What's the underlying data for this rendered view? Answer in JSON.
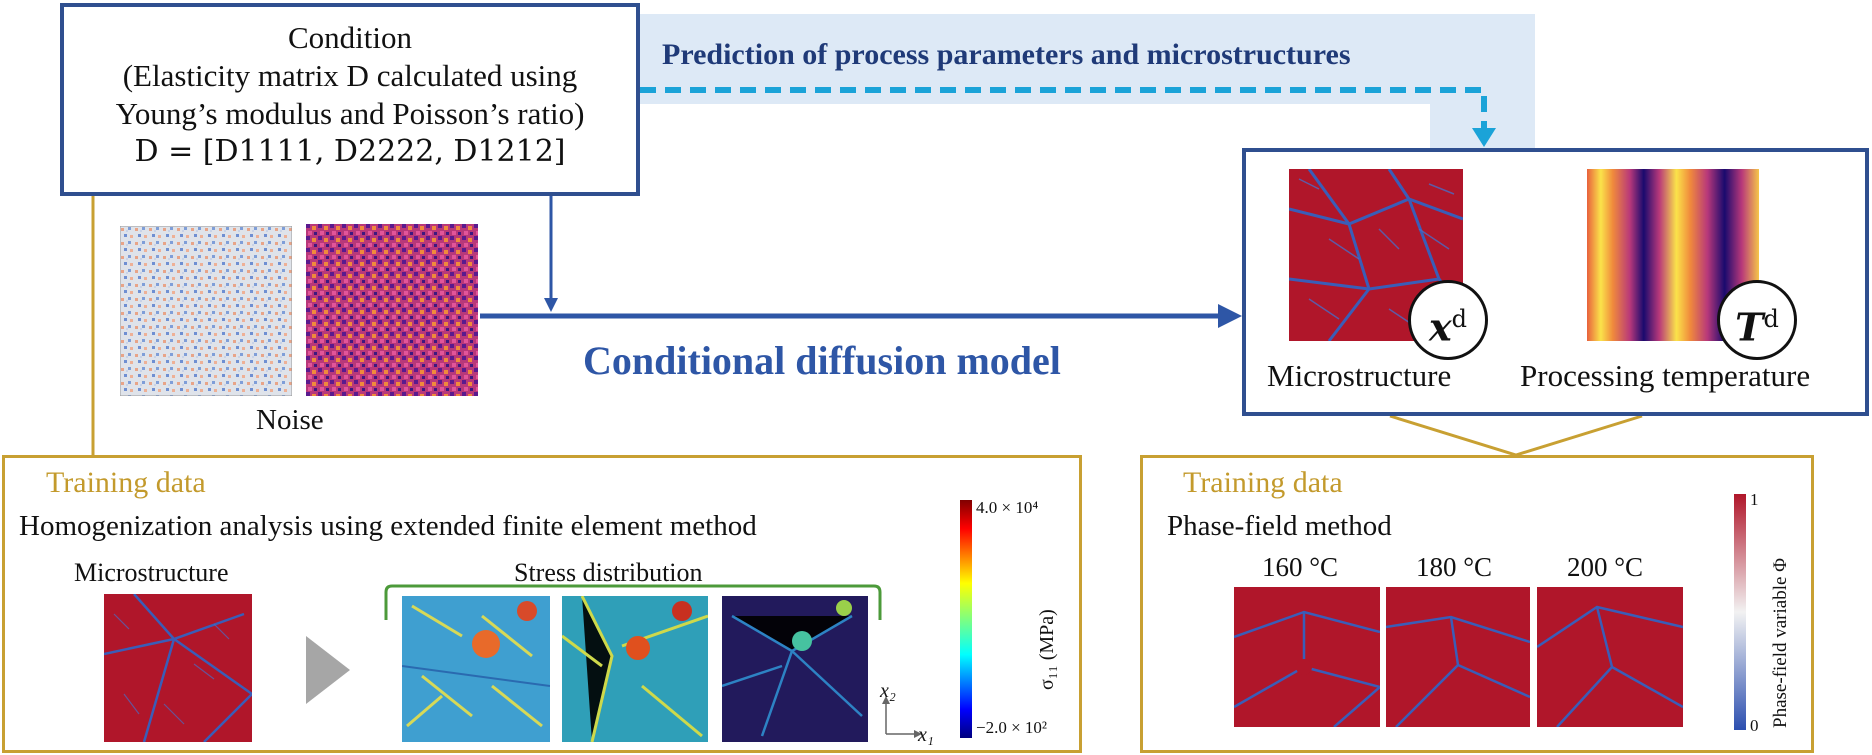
{
  "condition": {
    "title": "Condition",
    "line1": "(Elasticity matrix D calculated using",
    "line2": "Young’s modulus and Poisson’s ratio)",
    "formula": "D = [D1111, D2222, D1212]"
  },
  "prediction_label": "Prediction of process parameters and microstructures",
  "noise_label": "Noise",
  "model_label": "Conditional diffusion model",
  "outputs": {
    "microstructure_label": "Microstructure",
    "microstructure_symbol": "x",
    "processing_label": "Processing temperature",
    "processing_symbol": "T",
    "superscript": "d"
  },
  "training_left": {
    "heading": "Training data",
    "title": "Homogenization analysis using extended finite element method",
    "microstructure_label": "Microstructure",
    "stress_label": "Stress distribution",
    "colorbar_max": "4.0 × 10⁴",
    "colorbar_min": "−2.0 × 10²",
    "colorbar_axis": "σ₁₁ (MPa)",
    "axis_x": "x₁",
    "axis_y": "x₂"
  },
  "training_right": {
    "heading": "Training data",
    "title": "Phase-field method",
    "temps": [
      "160 °C",
      "180 °C",
      "200 °C"
    ],
    "colorbar_max": "1",
    "colorbar_min": "0",
    "colorbar_axis": "Phase-field variable Φ"
  },
  "colors": {
    "dark_blue": "#2f4f8f",
    "arrow_blue": "#2e56a6",
    "dashed_cyan": "#1ba3d8",
    "highlight": "#dde9f6",
    "gold": "#c8a032",
    "micro_red": "#b0162a",
    "micro_blue": "#3a5db8"
  }
}
